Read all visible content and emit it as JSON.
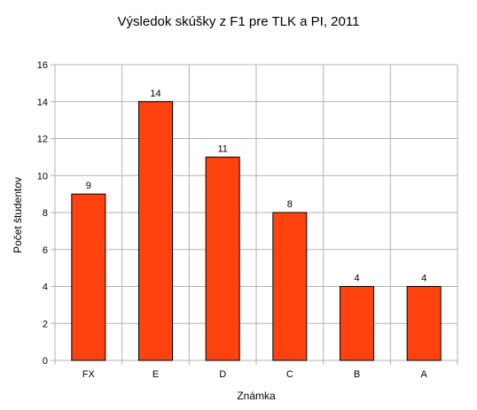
{
  "chart_data": {
    "type": "bar",
    "title": "Výsledok skúšky z F1 pre TLK a PI, 2011",
    "xlabel": "Známka",
    "ylabel": "Počet študentov",
    "categories": [
      "FX",
      "E",
      "D",
      "C",
      "B",
      "A"
    ],
    "values": [
      9,
      14,
      11,
      8,
      4,
      4
    ],
    "ylim": [
      0,
      16
    ],
    "yticks": [
      0,
      2,
      4,
      6,
      8,
      10,
      12,
      14,
      16
    ],
    "grid": true,
    "legend": "none",
    "colors": {
      "bar": "#ff420e",
      "bar_outline": "#000000",
      "grid": "#b3b3b3"
    }
  }
}
